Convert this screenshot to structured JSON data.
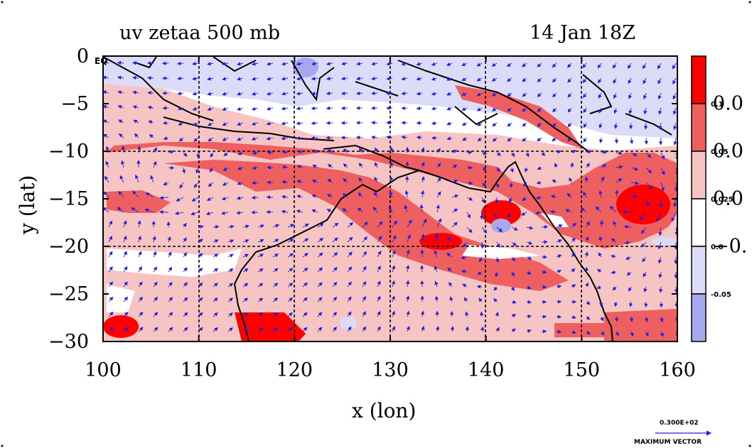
{
  "chart_data": {
    "type": "heatmap",
    "title": "uv zetaa 500 mb",
    "timestamp": "14 Jan 18Z",
    "xlabel": "x (lon)",
    "ylabel": "y (lat)",
    "xlim": [
      100,
      160
    ],
    "ylim": [
      -30,
      0
    ],
    "x_ticks": [
      "100",
      "110",
      "120",
      "130",
      "140",
      "150",
      "160"
    ],
    "y_ticks": [
      "0",
      "−5",
      "−10",
      "−15",
      "−20",
      "−25",
      "−30"
    ],
    "eq_label": "EQ",
    "grid": true,
    "colorbar": {
      "levels": [
        {
          "label": "0.1",
          "color": "#ff0000"
        },
        {
          "label": "0.05",
          "color": "#ee6060"
        },
        {
          "label": "0.025",
          "color": "#f7c4c4"
        },
        {
          "label": "0.0",
          "color": "#ffffff"
        },
        {
          "label": "-0.05",
          "color": "#dcdcf8"
        },
        {
          "label": "",
          "color": "#a8a8ee"
        }
      ],
      "large_labels": [
        "0.0",
        "0.0",
        "0.0",
        "−0."
      ]
    },
    "vector_reference": {
      "value": "0.300E+02",
      "label": "MAXIMUM VECTOR"
    }
  }
}
